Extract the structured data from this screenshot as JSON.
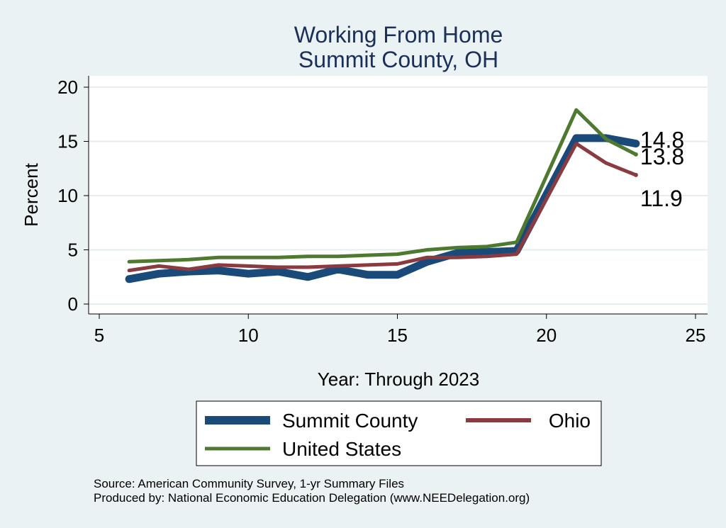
{
  "chart_data": {
    "type": "line",
    "title": "Working From Home",
    "subtitle": "Summit County, OH",
    "xlabel": "Year: Through 2023",
    "ylabel": "Percent",
    "xlim": [
      5,
      25
    ],
    "ylim": [
      0,
      20
    ],
    "x_ticks": [
      5,
      10,
      15,
      20,
      25
    ],
    "y_ticks": [
      0,
      5,
      10,
      15,
      20
    ],
    "grid": true,
    "legend_position": "bottom",
    "x": [
      6,
      7,
      8,
      9,
      10,
      11,
      12,
      13,
      14,
      15,
      16,
      17,
      18,
      19,
      21,
      22,
      23
    ],
    "series": [
      {
        "name": "Summit County",
        "color": "#1a4a7a",
        "values": [
          2.3,
          2.8,
          3.0,
          3.1,
          2.8,
          3.0,
          2.5,
          3.2,
          2.7,
          2.7,
          3.9,
          4.7,
          4.8,
          4.9,
          15.3,
          15.3,
          14.8
        ],
        "end_label": "14.8"
      },
      {
        "name": "Ohio",
        "color": "#8b3a3f",
        "values": [
          3.1,
          3.5,
          3.2,
          3.6,
          3.5,
          3.4,
          3.4,
          3.5,
          3.6,
          3.7,
          4.3,
          4.3,
          4.4,
          4.6,
          14.8,
          13.0,
          11.9
        ],
        "end_label": "11.9"
      },
      {
        "name": "United States",
        "color": "#4e7a2f",
        "values": [
          3.9,
          4.0,
          4.1,
          4.3,
          4.3,
          4.3,
          4.4,
          4.4,
          4.5,
          4.6,
          5.0,
          5.2,
          5.3,
          5.7,
          17.9,
          15.2,
          13.8
        ],
        "end_label": "13.8"
      }
    ]
  },
  "footer": {
    "source": "Source: American Community Survey, 1-yr Summary Files",
    "produced_by": "Produced by: National Economic Education Delegation (www.NEEDelegation.org)"
  }
}
